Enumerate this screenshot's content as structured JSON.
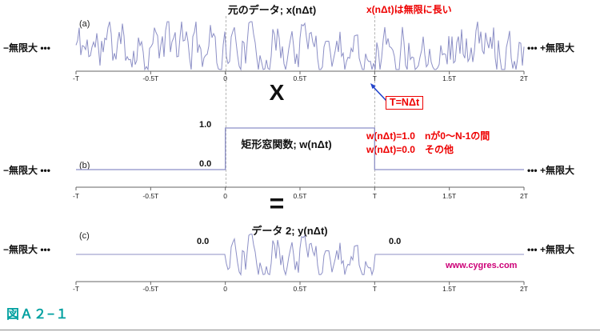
{
  "figure_label": "図Ａ２−１",
  "axis_ticks": [
    "-T",
    "-0.5T",
    "0",
    "0.5T",
    "T",
    "1.5T",
    "2T"
  ],
  "operators": {
    "multiply": "X",
    "equals": "=",
    "t_definition": "T=NΔt"
  },
  "panel_a": {
    "index": "(a)",
    "title": "元のデータ; x(nΔt)",
    "note": "x(nΔt)は無限に長い",
    "neg_infinity": "−無限大 •••",
    "pos_infinity": "••• +無限大"
  },
  "panel_b": {
    "index": "(b)",
    "title": "矩形窓関数; w(nΔt)",
    "level_one": "1.0",
    "level_zero": "0.0",
    "note_line1": "w(nΔt)=1.0　nが0〜N-1の間",
    "note_line2": "w(nΔt)=0.0　その他",
    "neg_infinity": "−無限大 •••",
    "pos_infinity": "••• +無限大"
  },
  "panel_c": {
    "index": "(c)",
    "title": "データ 2; y(nΔt)",
    "zero_left": "0.0",
    "zero_right": "0.0",
    "neg_infinity": "−無限大 •••",
    "pos_infinity": "••• +無限大",
    "watermark": "www.cygres.com"
  },
  "colors": {
    "waveform": "#8c8fc6",
    "axis": "#666666",
    "annotation_red": "#ee0000",
    "watermark_magenta": "#cc0077",
    "figure_teal": "#00a0a0",
    "arrow_blue": "#2244cc"
  },
  "waveform": {
    "seed": 11,
    "points": 281,
    "amplitude": 26,
    "smoothing": 0.5
  },
  "chart_data": [
    {
      "type": "line",
      "panel": "a",
      "title": "元のデータ; x(nΔt)",
      "x_ticks": [
        "-T",
        "-0.5T",
        "0",
        "0.5T",
        "T",
        "1.5T",
        "2T"
      ],
      "x_range": [
        "-T",
        "2T"
      ],
      "grid": false,
      "series": [
        {
          "name": "x(nΔt)",
          "description": "連続するランダム雑音波形、両方向に無限に続く"
        }
      ]
    },
    {
      "type": "line",
      "panel": "b",
      "title": "矩形窓関数; w(nΔt)",
      "x_ticks": [
        "-T",
        "-0.5T",
        "0",
        "0.5T",
        "T",
        "1.5T",
        "2T"
      ],
      "x_range": [
        "-T",
        "2T"
      ],
      "ylim": [
        0,
        1
      ],
      "series": [
        {
          "name": "w(nΔt)",
          "segments": [
            {
              "x": [
                "-T",
                "0"
              ],
              "value": 0.0
            },
            {
              "x": [
                "0",
                "T"
              ],
              "value": 1.0
            },
            {
              "x": [
                "T",
                "2T"
              ],
              "value": 0.0
            }
          ]
        }
      ]
    },
    {
      "type": "line",
      "panel": "c",
      "title": "データ 2; y(nΔt)",
      "x_ticks": [
        "-T",
        "-0.5T",
        "0",
        "0.5T",
        "T",
        "1.5T",
        "2T"
      ],
      "x_range": [
        "-T",
        "2T"
      ],
      "series": [
        {
          "name": "y(nΔt)",
          "description": "0〜Tの区間はx(nΔt)と同一、その他の区間は0.0"
        }
      ]
    }
  ]
}
